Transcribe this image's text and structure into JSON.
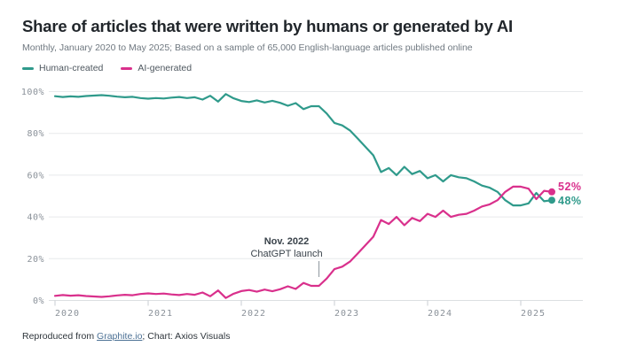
{
  "page": {
    "title": "Share of articles that were written by humans or generated by AI",
    "subtitle": "Monthly, January 2020 to May 2025; Based on a sample of 65,000 English-language articles published online"
  },
  "legend": [
    {
      "label": "Human-created",
      "color": "#2F9A8B"
    },
    {
      "label": "AI-generated",
      "color": "#D9308C"
    }
  ],
  "footer": {
    "prefix": "Reproduced from ",
    "link_text": "Graphite.io",
    "suffix": "; Chart: Axios Visuals"
  },
  "chart_data": {
    "type": "line",
    "title": "Share of articles that were written by humans or generated by AI",
    "x_unit": "month",
    "x_start": "2020-01",
    "x_end": "2025-05",
    "months": 65,
    "grid": true,
    "ylim": [
      0,
      100
    ],
    "y_tick_values": [
      0,
      20,
      40,
      60,
      80,
      100
    ],
    "y_tick_labels": [
      "0%",
      "20%",
      "40%",
      "60%",
      "80%",
      "100%"
    ],
    "x_tick_labels": [
      "2020",
      "2021",
      "2022",
      "2023",
      "2024",
      "2025"
    ],
    "annotation": {
      "line1": "Nov. 2022",
      "line2": "ChatGPT launch",
      "month_index": 34
    },
    "series": [
      {
        "id": "human",
        "name": "Human-created",
        "color": "#2F9A8B",
        "end_label": "48%",
        "values": [
          97.8,
          97.4,
          97.7,
          97.5,
          97.9,
          98.1,
          98.3,
          98.0,
          97.6,
          97.3,
          97.5,
          96.9,
          96.6,
          96.9,
          96.7,
          97.1,
          97.4,
          96.9,
          97.3,
          96.2,
          98.0,
          95.2,
          98.8,
          96.8,
          95.5,
          95.0,
          95.8,
          94.8,
          95.6,
          94.6,
          93.2,
          94.5,
          91.6,
          93.0,
          93.0,
          89.5,
          85.0,
          83.8,
          81.4,
          77.5,
          73.5,
          69.5,
          61.5,
          63.4,
          60.0,
          64.0,
          60.5,
          62.0,
          58.5,
          60.0,
          57.0,
          60.0,
          59.0,
          58.5,
          57.0,
          55.0,
          54.0,
          52.0,
          48.0,
          45.5,
          45.5,
          46.5,
          51.5,
          47.5,
          48.0
        ]
      },
      {
        "id": "ai",
        "name": "AI-generated",
        "color": "#D9308C",
        "end_label": "52%",
        "values": [
          2.2,
          2.6,
          2.3,
          2.5,
          2.1,
          1.9,
          1.7,
          2.0,
          2.4,
          2.7,
          2.5,
          3.1,
          3.4,
          3.1,
          3.3,
          2.9,
          2.6,
          3.1,
          2.7,
          3.8,
          2.0,
          4.8,
          1.2,
          3.2,
          4.5,
          5.0,
          4.2,
          5.2,
          4.4,
          5.4,
          6.8,
          5.5,
          8.4,
          7.0,
          7.0,
          10.5,
          15.0,
          16.2,
          18.6,
          22.5,
          26.5,
          30.5,
          38.5,
          36.6,
          40.0,
          36.0,
          39.5,
          38.0,
          41.5,
          40.0,
          43.0,
          40.0,
          41.0,
          41.5,
          43.0,
          45.0,
          46.0,
          48.0,
          52.0,
          54.5,
          54.5,
          53.5,
          48.5,
          52.5,
          52.0
        ]
      }
    ]
  }
}
